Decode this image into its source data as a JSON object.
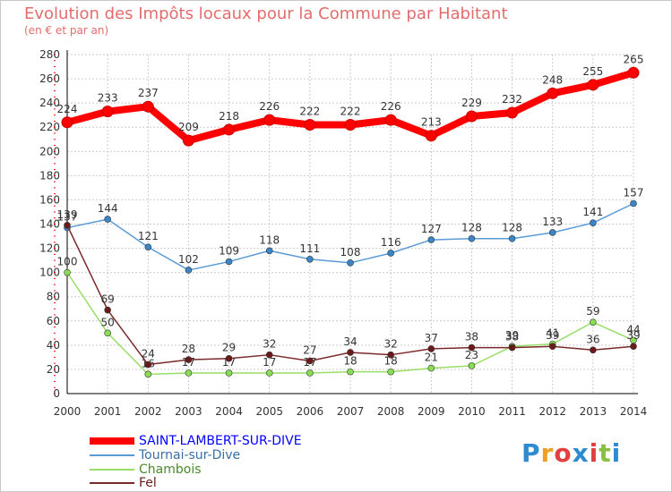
{
  "header": {
    "title": "Evolution des Impôts locaux pour la Commune par Habitant",
    "subtitle": "(en € et par an)"
  },
  "logo": {
    "text": "Proxiti"
  },
  "colors": {
    "title": "#e36c6c",
    "axis": "#000000",
    "grid": "#cccccc",
    "axis_ticks_red": "#ff0000"
  },
  "chart_data": {
    "type": "line",
    "x": [
      "2000",
      "2001",
      "2002",
      "2003",
      "2004",
      "2005",
      "2006",
      "2007",
      "2008",
      "2009",
      "2010",
      "2011",
      "2012",
      "2013",
      "2014"
    ],
    "ylim": [
      0,
      280
    ],
    "yticks": [
      0,
      20,
      40,
      60,
      80,
      100,
      120,
      140,
      160,
      180,
      200,
      220,
      240,
      260,
      280
    ],
    "grid": true,
    "legend_position": "bottom-left",
    "series": [
      {
        "name": "SAINT-LAMBERT-SUR-DIVE",
        "color": "#ff0000",
        "marker_color": "#ff0000",
        "legend_color": "#0000ff",
        "thick": true,
        "values": [
          224,
          233,
          237,
          209,
          218,
          226,
          222,
          222,
          226,
          213,
          229,
          232,
          248,
          255,
          265
        ]
      },
      {
        "name": "Tournai-sur-Dive",
        "color": "#5b9bd5",
        "marker_color": "#3a86c8",
        "legend_color": "#3a6ea5",
        "thick": false,
        "values": [
          137,
          144,
          121,
          102,
          109,
          118,
          111,
          108,
          116,
          127,
          128,
          128,
          133,
          141,
          157
        ]
      },
      {
        "name": "Chambois",
        "color": "#99dd66",
        "marker_color": "#88dd55",
        "legend_color": "#4a8a2a",
        "thick": false,
        "values": [
          100,
          50,
          16,
          17,
          17,
          17,
          17,
          18,
          18,
          21,
          23,
          39,
          41,
          59,
          44
        ]
      },
      {
        "name": "Fel",
        "color": "#7a2a2a",
        "marker_color": "#6b1a1a",
        "legend_color": "#6b1a1a",
        "thick": false,
        "values": [
          139,
          69,
          24,
          28,
          29,
          32,
          27,
          34,
          32,
          37,
          38,
          38,
          39,
          36,
          39
        ]
      }
    ]
  }
}
